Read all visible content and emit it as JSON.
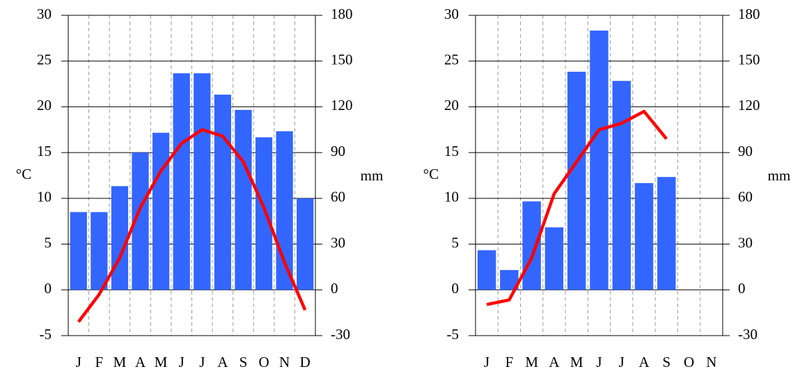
{
  "chart_data": [
    {
      "type": "combo",
      "ylabel": "°C",
      "y2label": "mm",
      "categories": [
        "J",
        "F",
        "M",
        "A",
        "M",
        "J",
        "J",
        "A",
        "S",
        "O",
        "N",
        "D"
      ],
      "ylim": [
        -5,
        30
      ],
      "yticks": [
        -5,
        0,
        5,
        10,
        15,
        20,
        25,
        30
      ],
      "y2lim": [
        -30,
        180
      ],
      "y2ticks": [
        -30,
        0,
        30,
        60,
        90,
        120,
        150,
        180
      ],
      "series": [
        {
          "kind": "bar",
          "axis": "y2",
          "color": "#3366ff",
          "values": [
            51,
            51,
            68,
            90,
            103,
            142,
            142,
            128,
            118,
            100,
            104,
            60
          ]
        },
        {
          "kind": "line",
          "axis": "y",
          "color": "#ff0000",
          "values": [
            -3.5,
            -0.5,
            3.5,
            9,
            13,
            16,
            17.5,
            16.8,
            14,
            9,
            3,
            -2.2
          ]
        }
      ]
    },
    {
      "type": "combo",
      "ylabel": "°C",
      "y2label": "mm",
      "categories": [
        "J",
        "F",
        "M",
        "A",
        "M",
        "J",
        "J",
        "A",
        "S",
        "O",
        "N"
      ],
      "ylim": [
        -5,
        30
      ],
      "yticks": [
        -5,
        0,
        5,
        10,
        15,
        20,
        25,
        30
      ],
      "y2lim": [
        -30,
        180
      ],
      "y2ticks": [
        -30,
        0,
        30,
        60,
        90,
        120,
        150,
        180
      ],
      "series": [
        {
          "kind": "bar",
          "axis": "y2",
          "color": "#3366ff",
          "values": [
            26,
            13,
            58,
            41,
            143,
            170,
            137,
            70,
            74,
            null,
            null
          ]
        },
        {
          "kind": "line",
          "axis": "y",
          "color": "#ff0000",
          "values": [
            -1.6,
            -1.1,
            3.5,
            10.5,
            14,
            17.5,
            18.2,
            19.5,
            16.5,
            null,
            null
          ]
        }
      ]
    }
  ]
}
